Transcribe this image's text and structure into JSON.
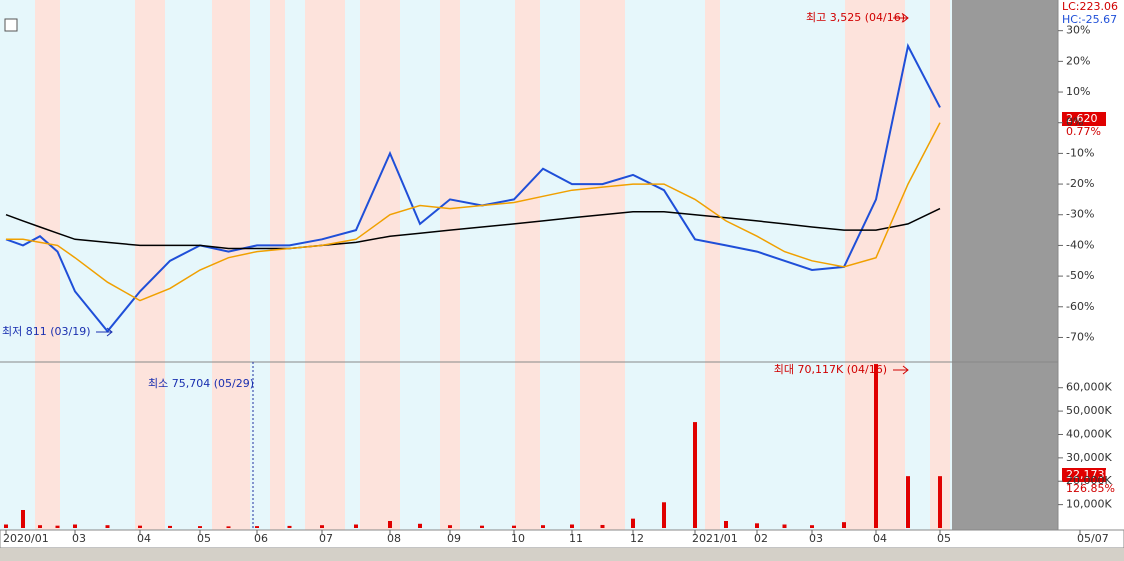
{
  "chart_data": {
    "type": "line",
    "categories": [
      "2020/01",
      null,
      null,
      null,
      "03",
      null,
      "04",
      null,
      "05",
      null,
      "06",
      null,
      "07",
      null,
      "08",
      null,
      "09",
      null,
      "10",
      null,
      "11",
      null,
      "12",
      null,
      "2021/01",
      null,
      "02",
      null,
      "03",
      null,
      "04",
      null,
      "05",
      "05/07"
    ],
    "series": [
      {
        "color": "#1f4fd8",
        "values": [
          -38,
          -40,
          -37,
          -42,
          -55,
          -68,
          -55,
          -45,
          -40,
          -42,
          -40,
          -40,
          -38,
          -35,
          -10,
          -33,
          -25,
          -27,
          -25,
          -15,
          -20,
          -20,
          -17,
          -22,
          -38,
          -40,
          -42,
          -45,
          -48,
          -47,
          -25,
          25,
          5,
          null
        ]
      },
      {
        "color": "#000000",
        "values": [
          -30,
          -32,
          -34,
          -36,
          -38,
          -39,
          -40,
          -40,
          -40,
          -41,
          -41,
          -41,
          -40,
          -39,
          -37,
          -36,
          -35,
          -34,
          -33,
          -32,
          -31,
          -30,
          -29,
          -29,
          -30,
          -31,
          -32,
          -33,
          -34,
          -35,
          -35,
          -33,
          -28,
          null
        ]
      },
      {
        "color": "#f0a000",
        "values": [
          -38,
          -38,
          -39,
          -40,
          -44,
          -52,
          -58,
          -54,
          -48,
          -44,
          -42,
          -41,
          -40,
          -38,
          -30,
          -27,
          -28,
          -27,
          -26,
          -24,
          -22,
          -21,
          -20,
          -20,
          -25,
          -32,
          -37,
          -42,
          -45,
          -47,
          -44,
          -20,
          0,
          null
        ]
      }
    ],
    "ylim": [
      -78,
      40
    ],
    "yticks": [
      {
        "value": 30,
        "label": "30%"
      },
      {
        "value": 20,
        "label": "20%"
      },
      {
        "value": 10,
        "label": "10%"
      },
      {
        "value": 0,
        "label": "0%"
      },
      {
        "value": -10,
        "label": "-10%"
      },
      {
        "value": -20,
        "label": "-20%"
      },
      {
        "value": -30,
        "label": "-30%"
      },
      {
        "value": -40,
        "label": "-40%"
      },
      {
        "value": -50,
        "label": "-50%"
      },
      {
        "value": -60,
        "label": "-60%"
      },
      {
        "value": -70,
        "label": "-70%"
      }
    ],
    "volume": {
      "color": "#e00000",
      "values": [
        1500,
        7700,
        1200,
        1000,
        1500,
        1200,
        1000,
        900,
        800,
        700,
        800,
        900,
        1200,
        1500,
        3000,
        1800,
        1200,
        1000,
        1000,
        1200,
        1500,
        1300,
        4000,
        11000,
        45300,
        3000,
        2000,
        1500,
        1200,
        2500,
        70117,
        22173,
        22173,
        null
      ],
      "ylim": [
        0,
        71000
      ],
      "yticks": [
        {
          "value": 10000,
          "label": "10,000K"
        },
        {
          "value": 20000,
          "label": "20,000K"
        },
        {
          "value": 30000,
          "label": "30,000K"
        },
        {
          "value": 40000,
          "label": "40,000K"
        },
        {
          "value": 50000,
          "label": "50,000K"
        },
        {
          "value": 60000,
          "label": "60,000K"
        }
      ]
    },
    "annotations": {
      "high": "최고 3,525 (04/16)",
      "low": "최저 811 (03/19)",
      "vol_min": "최소 75,704 (05/29)",
      "vol_max": "최대 70,117K (04/16)"
    },
    "lc": "LC:223.06",
    "hc": "HC:-25.67",
    "last_price": "2,620",
    "last_change": "0.77%",
    "last_volume": "22,173K",
    "volume_ratio": "126.85%"
  }
}
